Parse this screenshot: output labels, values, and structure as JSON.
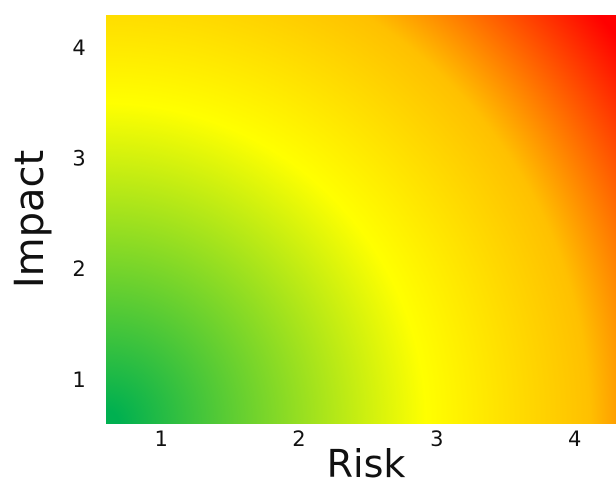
{
  "chart_data": {
    "type": "heatmap",
    "title": "",
    "xlabel": "Risk",
    "ylabel": "Impact",
    "x_ticks": [
      1,
      2,
      3,
      4
    ],
    "y_ticks": [
      1,
      2,
      3,
      4
    ],
    "xlim": [
      0.6,
      4.3
    ],
    "ylim": [
      0.6,
      4.3
    ],
    "grid": false,
    "color_stops": [
      {
        "position": 0.0,
        "color": "#00b050"
      },
      {
        "position": 0.45,
        "color": "#ffff00"
      },
      {
        "position": 1.0,
        "color": "#ff0000"
      }
    ],
    "gradient_origin": [
      0.6,
      0.6
    ]
  }
}
